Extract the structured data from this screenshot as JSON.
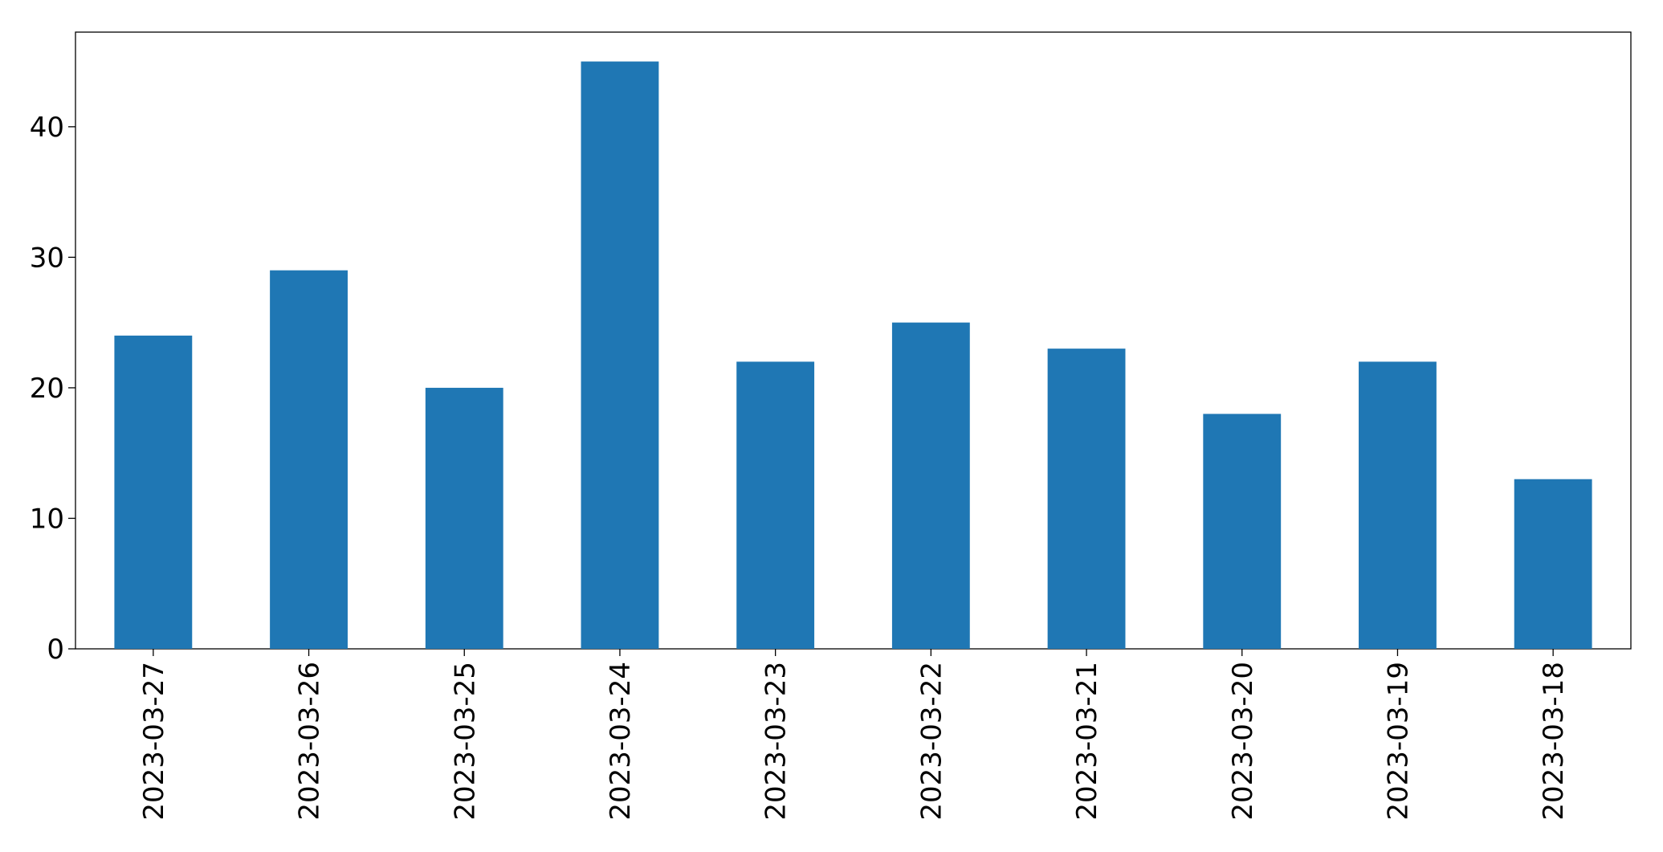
{
  "chart_data": {
    "type": "bar",
    "categories": [
      "2023-03-27",
      "2023-03-26",
      "2023-03-25",
      "2023-03-24",
      "2023-03-23",
      "2023-03-22",
      "2023-03-21",
      "2023-03-20",
      "2023-03-19",
      "2023-03-18"
    ],
    "values": [
      24,
      29,
      20,
      45,
      22,
      25,
      23,
      18,
      22,
      13
    ],
    "color": "#1f77b4",
    "ylim": [
      0,
      47.25
    ],
    "yticks": [
      0,
      10,
      20,
      30,
      40
    ],
    "grid": false
  }
}
